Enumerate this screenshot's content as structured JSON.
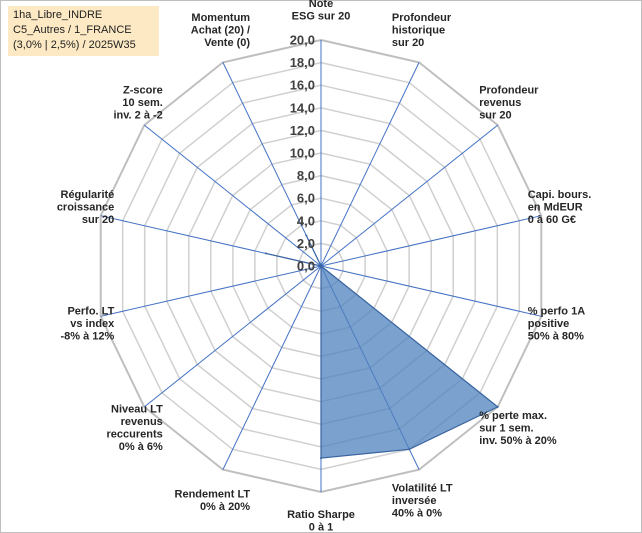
{
  "info": {
    "line1": "1ha_Libre_INDRE",
    "line2": "C5_Autres / 1_FRANCE",
    "line3": "(3,0% | 2,5%) / 2025W35"
  },
  "colors": {
    "fill": "#4f81bd",
    "fill_opacity": 0.75,
    "stroke": "#3a65a0",
    "axis": "#4472c4",
    "grid": "#d0d0d0",
    "outer_grid": "#bfbfbf",
    "info_bg": "#fde9c4"
  },
  "chart_data": {
    "type": "radar",
    "range": [
      0,
      20
    ],
    "tick_step": 2,
    "grid": true,
    "ticks": [
      "0,0",
      "2,0",
      "4,0",
      "6,0",
      "8,0",
      "10,0",
      "12,0",
      "14,0",
      "16,0",
      "18,0",
      "20,0"
    ],
    "axes": [
      {
        "label": [
          "Note",
          "ESG sur 20"
        ],
        "value": 0
      },
      {
        "label": [
          "Profondeur",
          "historique",
          "sur 20"
        ],
        "value": 0
      },
      {
        "label": [
          "Profondeur",
          "revenus",
          "sur 20"
        ],
        "value": 0
      },
      {
        "label": [
          "Capi. bours.",
          "en MdEUR",
          "0 à 60 G€"
        ],
        "value": 0
      },
      {
        "label": [
          "% perfo 1A",
          "positive",
          "50% à 80%"
        ],
        "value": 0
      },
      {
        "label": [
          "% perte max.",
          "sur 1 sem.",
          "inv. 50% à 20%"
        ],
        "value": 20
      },
      {
        "label": [
          "Volatilité LT",
          "inversée",
          "40% à 0%"
        ],
        "value": 18
      },
      {
        "label": [
          "Ratio Sharpe",
          "0 à 1"
        ],
        "value": 17
      },
      {
        "label": [
          "Rendement LT",
          "0% à 20%"
        ],
        "value": 0
      },
      {
        "label": [
          "Niveau LT",
          "revenus",
          "reccurents",
          "0% à 6%"
        ],
        "value": 0
      },
      {
        "label": [
          "Perfo. LT",
          "vs index",
          "-8% à 12%"
        ],
        "value": 0
      },
      {
        "label": [
          "Régularité",
          "croissance",
          "sur 20"
        ],
        "value": 5
      },
      {
        "label": [
          "Z-score",
          "10 sem.",
          "inv. 2 à -2"
        ],
        "value": 0
      },
      {
        "label": [
          "Momentum",
          "Achat (20) /",
          "Vente (0)"
        ],
        "value": 3
      }
    ]
  }
}
